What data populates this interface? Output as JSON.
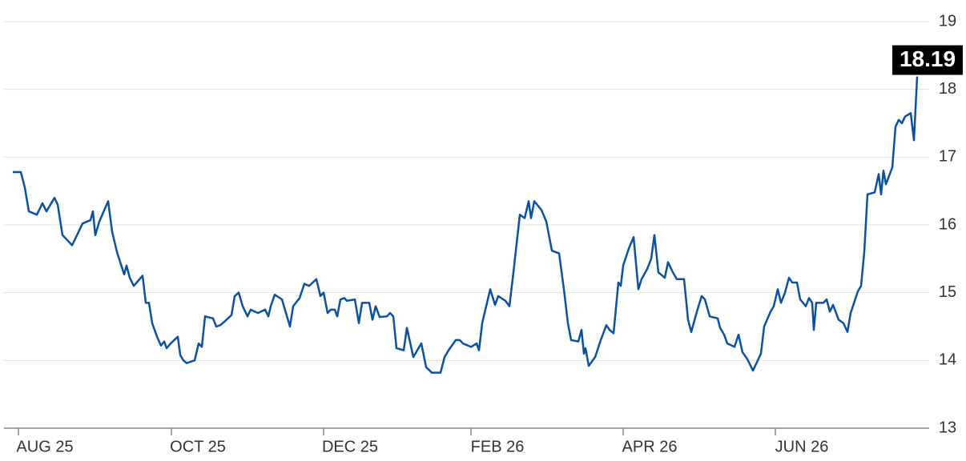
{
  "chart_data": {
    "type": "line",
    "color": "#0a519e",
    "grid": true,
    "xlim": [
      0,
      1129
    ],
    "ylim": [
      13,
      19
    ],
    "yticks": [
      13,
      14,
      15,
      16,
      17,
      18,
      19
    ],
    "xticks": [
      {
        "value": 7,
        "label": "AUG 25"
      },
      {
        "value": 198,
        "label": "OCT 25"
      },
      {
        "value": 388,
        "label": "DEC 25"
      },
      {
        "value": 572,
        "label": "FEB 26"
      },
      {
        "value": 762,
        "label": "APR 26"
      },
      {
        "value": 952,
        "label": "JUN 26"
      }
    ],
    "x": [
      0,
      10,
      15,
      20,
      30,
      37,
      42,
      52,
      56,
      62,
      74,
      79,
      87,
      97,
      100,
      103,
      108,
      119,
      124,
      130,
      139,
      142,
      146,
      151,
      162,
      166,
      170,
      174,
      180,
      185,
      189,
      192,
      197,
      206,
      209,
      213,
      217,
      227,
      232,
      236,
      240,
      250,
      254,
      259,
      264,
      273,
      277,
      282,
      287,
      293,
      297,
      306,
      315,
      319,
      322,
      327,
      336,
      341,
      346,
      350,
      358,
      364,
      370,
      379,
      384,
      388,
      393,
      397,
      402,
      405,
      409,
      414,
      417,
      427,
      432,
      436,
      445,
      449,
      453,
      458,
      467,
      471,
      475,
      479,
      488,
      492,
      500,
      510,
      516,
      523,
      534,
      539,
      544,
      553,
      558,
      562,
      572,
      579,
      582,
      586,
      596,
      602,
      606,
      615,
      620,
      625,
      633,
      639,
      644,
      647,
      651,
      660,
      666,
      673,
      682,
      688,
      693,
      697,
      706,
      710,
      713,
      715,
      719,
      727,
      734,
      741,
      745,
      750,
      756,
      759,
      762,
      769,
      775,
      781,
      785,
      792,
      797,
      801,
      806,
      814,
      818,
      824,
      829,
      838,
      843,
      847,
      854,
      860,
      864,
      870,
      880,
      883,
      888,
      892,
      901,
      906,
      911,
      917,
      924,
      934,
      938,
      946,
      950,
      955,
      959,
      964,
      969,
      973,
      979,
      983,
      990,
      994,
      998,
      1000,
      1003,
      1012,
      1016,
      1020,
      1024,
      1031,
      1037,
      1042,
      1046,
      1055,
      1059,
      1063,
      1067,
      1076,
      1081,
      1084,
      1087,
      1090,
      1098,
      1102,
      1106,
      1110,
      1114,
      1121,
      1125,
      1129
    ],
    "values": [
      16.78,
      16.78,
      16.55,
      16.2,
      16.15,
      16.32,
      16.2,
      16.4,
      16.3,
      15.85,
      15.7,
      15.82,
      16.02,
      16.07,
      16.2,
      15.85,
      16.05,
      16.35,
      15.9,
      15.6,
      15.27,
      15.4,
      15.22,
      15.1,
      15.25,
      14.85,
      14.85,
      14.55,
      14.35,
      14.22,
      14.28,
      14.18,
      14.25,
      14.35,
      14.08,
      14.0,
      13.96,
      14.0,
      14.25,
      14.2,
      14.65,
      14.62,
      14.5,
      14.52,
      14.57,
      14.67,
      14.95,
      15.0,
      14.8,
      14.65,
      14.75,
      14.7,
      14.75,
      14.65,
      14.8,
      14.97,
      14.9,
      14.7,
      14.5,
      14.8,
      14.92,
      15.13,
      15.1,
      15.2,
      14.95,
      15.0,
      14.7,
      14.75,
      14.75,
      14.65,
      14.9,
      14.92,
      14.88,
      14.9,
      14.55,
      14.85,
      14.85,
      14.6,
      14.8,
      14.64,
      14.65,
      14.7,
      14.65,
      14.18,
      14.15,
      14.48,
      14.05,
      14.25,
      13.9,
      13.82,
      13.82,
      14.05,
      14.15,
      14.3,
      14.3,
      14.25,
      14.2,
      14.25,
      14.15,
      14.55,
      15.05,
      14.82,
      14.95,
      14.88,
      14.8,
      15.3,
      16.15,
      16.1,
      16.35,
      16.1,
      16.35,
      16.22,
      16.05,
      15.62,
      15.58,
      15.05,
      14.55,
      14.3,
      14.28,
      14.45,
      14.1,
      14.18,
      13.92,
      14.05,
      14.3,
      14.52,
      14.45,
      14.4,
      15.15,
      15.1,
      15.4,
      15.65,
      15.82,
      15.05,
      15.2,
      15.35,
      15.5,
      15.85,
      15.3,
      15.22,
      15.45,
      15.3,
      15.2,
      15.2,
      14.6,
      14.42,
      14.72,
      14.95,
      14.9,
      14.65,
      14.62,
      14.48,
      14.38,
      14.25,
      14.2,
      14.38,
      14.12,
      14.02,
      13.85,
      14.1,
      14.5,
      14.72,
      14.8,
      15.05,
      14.85,
      15.0,
      15.22,
      15.15,
      15.15,
      14.9,
      14.8,
      14.92,
      14.85,
      14.45,
      14.85,
      14.85,
      14.9,
      14.72,
      14.82,
      14.6,
      14.55,
      14.42,
      14.7,
      15.02,
      15.1,
      15.6,
      16.45,
      16.48,
      16.75,
      16.45,
      16.8,
      16.6,
      16.85,
      17.45,
      17.55,
      17.5,
      17.6,
      17.65,
      17.25,
      18.19
    ]
  }
}
